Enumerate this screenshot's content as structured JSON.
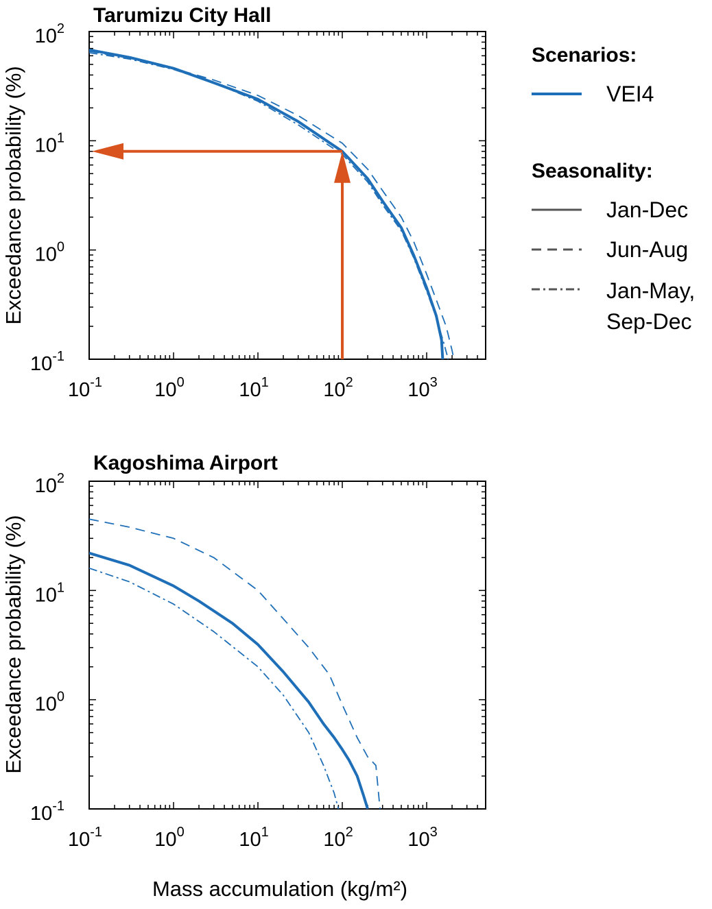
{
  "colors": {
    "series": "#1f6fb8",
    "annotation": "#d9531e",
    "legend_style": "#555555",
    "axes": "#000000"
  },
  "legend": {
    "scenarios_heading": "Scenarios:",
    "scenario_items": [
      {
        "label": "VEI4",
        "style": "solid-thick"
      }
    ],
    "seasonality_heading": "Seasonality:",
    "seasonality_items": [
      {
        "label_lines": [
          "Jan-Dec"
        ],
        "style": "solid"
      },
      {
        "label_lines": [
          "Jun-Aug"
        ],
        "style": "dashed"
      },
      {
        "label_lines": [
          "Jan-May,",
          "Sep-Dec"
        ],
        "style": "dashdot"
      }
    ]
  },
  "chart_data": [
    {
      "type": "line",
      "title": "Tarumizu City Hall",
      "xlabel": "",
      "ylabel": "Exceedance probability (%)",
      "xscale": "log",
      "yscale": "log",
      "xlim": [
        0.1,
        5000
      ],
      "ylim": [
        0.1,
        100
      ],
      "x_ticks": [
        {
          "base": "10",
          "exp": "-1"
        },
        {
          "base": "10",
          "exp": "0"
        },
        {
          "base": "10",
          "exp": "1"
        },
        {
          "base": "10",
          "exp": "2"
        },
        {
          "base": "10",
          "exp": "3"
        }
      ],
      "y_ticks": [
        {
          "base": "10",
          "exp": "2"
        },
        {
          "base": "10",
          "exp": "1"
        },
        {
          "base": "10",
          "exp": "0"
        },
        {
          "base": "10",
          "exp": "-1"
        }
      ],
      "annotation": "arrows from x = 100 kg/m² up to the Jan-Dec curve (~8%) and left to the y-axis",
      "annotation_x": 100,
      "annotation_y": 8,
      "series": [
        {
          "seasonality": "Jan-Dec",
          "style": "solid",
          "x": [
            0.1,
            0.3,
            1,
            3,
            10,
            30,
            100,
            200,
            300,
            500,
            700,
            1000,
            1300,
            1500,
            1550
          ],
          "y": [
            68,
            58,
            46,
            34,
            24,
            15,
            8.0,
            4.5,
            2.8,
            1.6,
            0.9,
            0.45,
            0.25,
            0.15,
            0.1
          ]
        },
        {
          "seasonality": "Jun-Aug",
          "style": "dashed",
          "x": [
            0.1,
            0.3,
            1,
            3,
            10,
            30,
            100,
            200,
            300,
            500,
            700,
            1000,
            1300,
            1700,
            2000,
            2100
          ],
          "y": [
            66,
            57,
            46,
            36,
            26,
            17,
            9.5,
            5.5,
            3.5,
            2.0,
            1.2,
            0.6,
            0.35,
            0.2,
            0.12,
            0.1
          ]
        },
        {
          "seasonality": "Jan-May, Sep-Dec",
          "style": "dashdot",
          "x": [
            0.1,
            0.3,
            1,
            3,
            10,
            30,
            100,
            200,
            300,
            500,
            700,
            1000,
            1300,
            1600,
            1800
          ],
          "y": [
            64,
            56,
            45,
            34,
            23,
            14,
            7.5,
            4.2,
            2.6,
            1.5,
            0.85,
            0.42,
            0.24,
            0.14,
            0.1
          ]
        }
      ]
    },
    {
      "type": "line",
      "title": "Kagoshima Airport",
      "xlabel": "Mass accumulation (kg/m²)",
      "ylabel": "Exceedance probability (%)",
      "xscale": "log",
      "yscale": "log",
      "xlim": [
        0.1,
        5000
      ],
      "ylim": [
        0.1,
        100
      ],
      "x_ticks": [
        {
          "base": "10",
          "exp": "-1"
        },
        {
          "base": "10",
          "exp": "0"
        },
        {
          "base": "10",
          "exp": "1"
        },
        {
          "base": "10",
          "exp": "2"
        },
        {
          "base": "10",
          "exp": "3"
        }
      ],
      "y_ticks": [
        {
          "base": "10",
          "exp": "2"
        },
        {
          "base": "10",
          "exp": "1"
        },
        {
          "base": "10",
          "exp": "0"
        },
        {
          "base": "10",
          "exp": "-1"
        }
      ],
      "series": [
        {
          "seasonality": "Jan-Dec",
          "style": "solid",
          "x": [
            0.1,
            0.3,
            1,
            2,
            5,
            10,
            20,
            40,
            60,
            80,
            100,
            120,
            150,
            180,
            200
          ],
          "y": [
            22,
            17,
            11,
            8,
            5,
            3.2,
            1.8,
            0.95,
            0.6,
            0.45,
            0.35,
            0.28,
            0.2,
            0.13,
            0.1
          ]
        },
        {
          "seasonality": "Jun-Aug",
          "style": "dashed",
          "x": [
            0.1,
            0.3,
            1,
            3,
            10,
            20,
            40,
            70,
            100,
            150,
            200,
            250,
            280
          ],
          "y": [
            45,
            38,
            30,
            20,
            10,
            5.5,
            3.0,
            1.7,
            0.9,
            0.45,
            0.3,
            0.25,
            0.1
          ]
        },
        {
          "seasonality": "Jan-May, Sep-Dec",
          "style": "dashdot",
          "x": [
            0.1,
            0.3,
            1,
            3,
            10,
            20,
            40,
            60,
            80,
            90
          ],
          "y": [
            16,
            12,
            7.5,
            4.2,
            2.0,
            1.1,
            0.5,
            0.25,
            0.14,
            0.1
          ]
        }
      ]
    }
  ]
}
